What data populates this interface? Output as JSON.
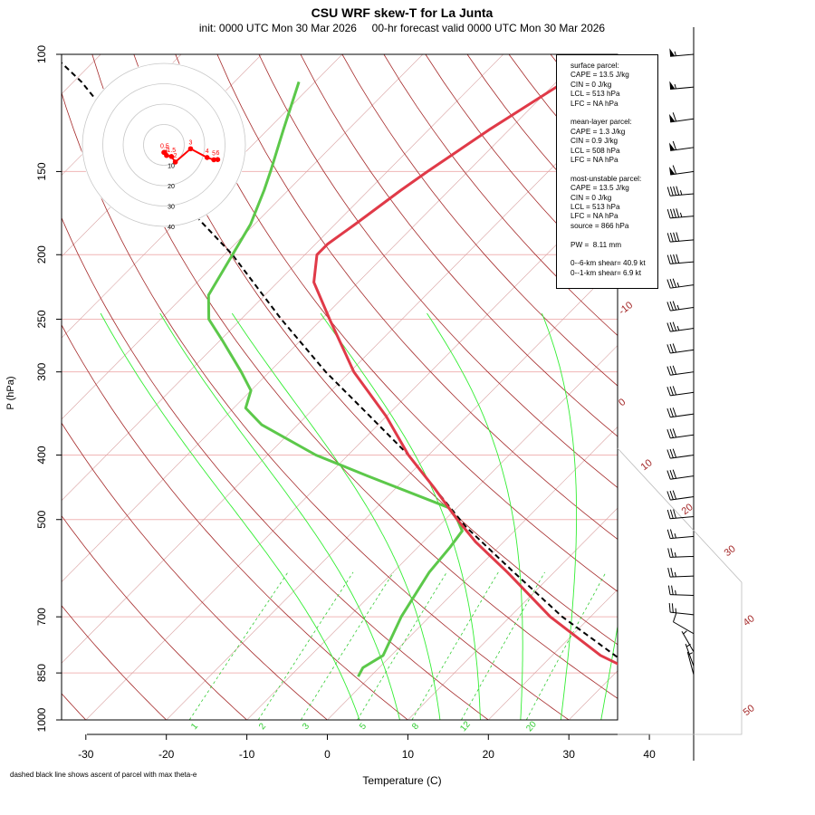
{
  "title": "CSU WRF skew-T for La Junta",
  "subtitle": "init: 0000 UTC Mon 30 Mar 2026     00-hr forecast valid 0000 UTC Mon 30 Mar 2026",
  "footnote": "dashed black line shows ascent of parcel with max theta-e",
  "stats": {
    "surface": [
      "surface parcel:",
      "CAPE = 13.5 J/kg",
      "CIN = 0 J/kg",
      "LCL = 513 hPa",
      "LFC = NA hPa"
    ],
    "mean_layer": [
      "mean-layer parcel:",
      "CAPE = 1.3 J/kg",
      "CIN = 0.9 J/kg",
      "LCL = 508 hPa",
      "LFC = NA hPa"
    ],
    "most_unstable": [
      "most-unstable parcel:",
      "CAPE = 13.5 J/kg",
      "CIN = 0 J/kg",
      "LCL = 513 hPa",
      "LFC = NA hPa",
      "source = 866 hPa"
    ],
    "pw": "PW =  8.11 mm",
    "shear": [
      "0--6-km shear= 40.9 kt",
      "0--1-km shear= 6.9 kt"
    ]
  },
  "colors": {
    "temperature": "#e03a48",
    "dewpoint": "#5cc84a",
    "parcel": "#000000",
    "dry_adiabat": "#a52a2a",
    "moist_adiabat": "#33ee33",
    "mixing_ratio": "#33cc33",
    "isobar": "#f0b6b6",
    "isotherm": "#d8a0a0",
    "hodograph": "#ff0000"
  },
  "chart_data": {
    "type": "line",
    "xlabel": "Temperature (C)",
    "ylabel": "P (hPa)",
    "x_ticks": [
      -30,
      -20,
      -10,
      0,
      10,
      20,
      30,
      40
    ],
    "y_ticks": [
      100,
      150,
      200,
      250,
      300,
      400,
      500,
      700,
      850,
      1000
    ],
    "y_scale": "log",
    "dry_adiabat_labels": [
      "-10",
      "0",
      "10",
      "20",
      "30",
      "40",
      "50"
    ],
    "mixing_ratio_labels": [
      "1",
      "2",
      "3",
      "5",
      "8",
      "12",
      "20"
    ],
    "series": [
      {
        "name": "temperature",
        "pressure": [
          861,
          800,
          700,
          600,
          540,
          500,
          450,
          400,
          350,
          300,
          250,
          220,
          200,
          193,
          180,
          160,
          150,
          130,
          110,
          105
        ],
        "temp": [
          34,
          26,
          15,
          4.2,
          -3.5,
          -8.5,
          -15,
          -22.5,
          -30,
          -39.5,
          -49,
          -55.5,
          -58.5,
          -58.5,
          -57.5,
          -56,
          -55,
          -52.5,
          -49,
          -47.5
        ]
      },
      {
        "name": "dewpoint",
        "pressure": [
          861,
          835,
          800,
          700,
          600,
          550,
          520,
          500,
          480,
          430,
          400,
          360,
          340,
          320,
          300,
          270,
          250,
          230,
          200,
          180,
          160,
          150,
          130,
          110
        ],
        "td": [
          -1.5,
          -2,
          -1,
          -3.5,
          -5.5,
          -6,
          -6.5,
          -8.5,
          -11,
          -25,
          -34,
          -44.5,
          -48.5,
          -50,
          -53.5,
          -59.5,
          -64,
          -67,
          -69,
          -70.5,
          -73,
          -74.5,
          -78,
          -82
        ]
      },
      {
        "name": "parcel",
        "pressure": [
          866,
          700,
          600,
          513,
          450,
          400,
          350,
          300,
          250,
          200,
          150,
          110,
          100
        ],
        "temp": [
          34.5,
          16.5,
          5,
          -6.5,
          -15,
          -22.5,
          -32,
          -43,
          -55,
          -69,
          -89,
          -109,
          -116
        ]
      }
    ],
    "hodograph": {
      "rings": [
        "10",
        "20",
        "30",
        "40"
      ],
      "point_labels": [
        "0.5",
        "1",
        "1.5",
        "2",
        "3",
        "4",
        "5",
        "6"
      ],
      "u": [
        0,
        0.4,
        1.3,
        3.7,
        5.6,
        13.1,
        21.2,
        24.5,
        26.4
      ],
      "v": [
        -3.7,
        -3.7,
        -5.2,
        -5.7,
        -8.4,
        -1.9,
        -6.2,
        -7.3,
        -7.2
      ]
    },
    "wind_barbs": [
      {
        "p": 100,
        "dir": 265,
        "spd": 55
      },
      {
        "p": 112,
        "dir": 265,
        "spd": 55
      },
      {
        "p": 125,
        "dir": 262,
        "spd": 60
      },
      {
        "p": 138,
        "dir": 262,
        "spd": 60
      },
      {
        "p": 150,
        "dir": 262,
        "spd": 60
      },
      {
        "p": 162,
        "dir": 265,
        "spd": 45
      },
      {
        "p": 175,
        "dir": 265,
        "spd": 45
      },
      {
        "p": 190,
        "dir": 265,
        "spd": 40
      },
      {
        "p": 205,
        "dir": 265,
        "spd": 40
      },
      {
        "p": 222,
        "dir": 262,
        "spd": 35
      },
      {
        "p": 240,
        "dir": 262,
        "spd": 35
      },
      {
        "p": 258,
        "dir": 262,
        "spd": 35
      },
      {
        "p": 278,
        "dir": 262,
        "spd": 30
      },
      {
        "p": 300,
        "dir": 262,
        "spd": 30
      },
      {
        "p": 322,
        "dir": 262,
        "spd": 30
      },
      {
        "p": 347,
        "dir": 262,
        "spd": 30
      },
      {
        "p": 373,
        "dir": 262,
        "spd": 30
      },
      {
        "p": 400,
        "dir": 262,
        "spd": 30
      },
      {
        "p": 430,
        "dir": 262,
        "spd": 30
      },
      {
        "p": 462,
        "dir": 262,
        "spd": 30
      },
      {
        "p": 495,
        "dir": 265,
        "spd": 30
      },
      {
        "p": 530,
        "dir": 265,
        "spd": 25
      },
      {
        "p": 568,
        "dir": 268,
        "spd": 25
      },
      {
        "p": 608,
        "dir": 268,
        "spd": 25
      },
      {
        "p": 650,
        "dir": 272,
        "spd": 25
      },
      {
        "p": 695,
        "dir": 276,
        "spd": 25
      },
      {
        "p": 742,
        "dir": 300,
        "spd": 10
      },
      {
        "p": 790,
        "dir": 330,
        "spd": 5
      },
      {
        "p": 830,
        "dir": 340,
        "spd": 5
      },
      {
        "p": 855,
        "dir": 345,
        "spd": 5
      }
    ]
  }
}
